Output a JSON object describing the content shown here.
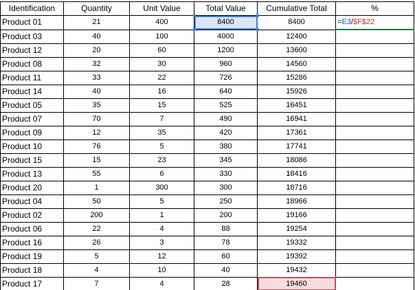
{
  "columns": [
    "Identification",
    "Quantity",
    "Unit Value",
    "Total Value",
    "Cumulative Total",
    "%"
  ],
  "formula": {
    "eq": "=",
    "ref1": "E3",
    "slash": "/",
    "ref2": "$F$22"
  },
  "rows": [
    {
      "id": "Product 01",
      "qty": "21",
      "unit": "400",
      "total": "8400",
      "cum": "8400"
    },
    {
      "id": "Product 03",
      "qty": "40",
      "unit": "100",
      "total": "4000",
      "cum": "12400"
    },
    {
      "id": "Product 12",
      "qty": "20",
      "unit": "60",
      "total": "1200",
      "cum": "13600"
    },
    {
      "id": "Product 08",
      "qty": "32",
      "unit": "30",
      "total": "960",
      "cum": "14560"
    },
    {
      "id": "Product 11",
      "qty": "33",
      "unit": "22",
      "total": "726",
      "cum": "15286"
    },
    {
      "id": "Product 14",
      "qty": "40",
      "unit": "16",
      "total": "640",
      "cum": "15926"
    },
    {
      "id": "Product 05",
      "qty": "35",
      "unit": "15",
      "total": "525",
      "cum": "16451"
    },
    {
      "id": "Product 07",
      "qty": "70",
      "unit": "7",
      "total": "490",
      "cum": "16941"
    },
    {
      "id": "Product 09",
      "qty": "12",
      "unit": "35",
      "total": "420",
      "cum": "17361"
    },
    {
      "id": "Product 10",
      "qty": "76",
      "unit": "5",
      "total": "380",
      "cum": "17741"
    },
    {
      "id": "Product 15",
      "qty": "15",
      "unit": "23",
      "total": "345",
      "cum": "18086"
    },
    {
      "id": "Product 13",
      "qty": "55",
      "unit": "6",
      "total": "330",
      "cum": "18416"
    },
    {
      "id": "Product 20",
      "qty": "1",
      "unit": "300",
      "total": "300",
      "cum": "18716"
    },
    {
      "id": "Product 04",
      "qty": "50",
      "unit": "5",
      "total": "250",
      "cum": "18966"
    },
    {
      "id": "Product 02",
      "qty": "200",
      "unit": "1",
      "total": "200",
      "cum": "19166"
    },
    {
      "id": "Product 06",
      "qty": "22",
      "unit": "4",
      "total": "88",
      "cum": "19254"
    },
    {
      "id": "Product 16",
      "qty": "26",
      "unit": "3",
      "total": "78",
      "cum": "19332"
    },
    {
      "id": "Product 19",
      "qty": "5",
      "unit": "12",
      "total": "60",
      "cum": "19392"
    },
    {
      "id": "Product 18",
      "qty": "4",
      "unit": "10",
      "total": "40",
      "cum": "19432"
    },
    {
      "id": "Product 17",
      "qty": "7",
      "unit": "4",
      "total": "28",
      "cum": "19460"
    }
  ],
  "colors": {
    "ref_e3": "#1f4ecf",
    "ref_f22": "#c0392b",
    "active_cell_border": "#217346",
    "highlight_blue": "#dbe7f7",
    "highlight_red": "#f6dde0"
  }
}
